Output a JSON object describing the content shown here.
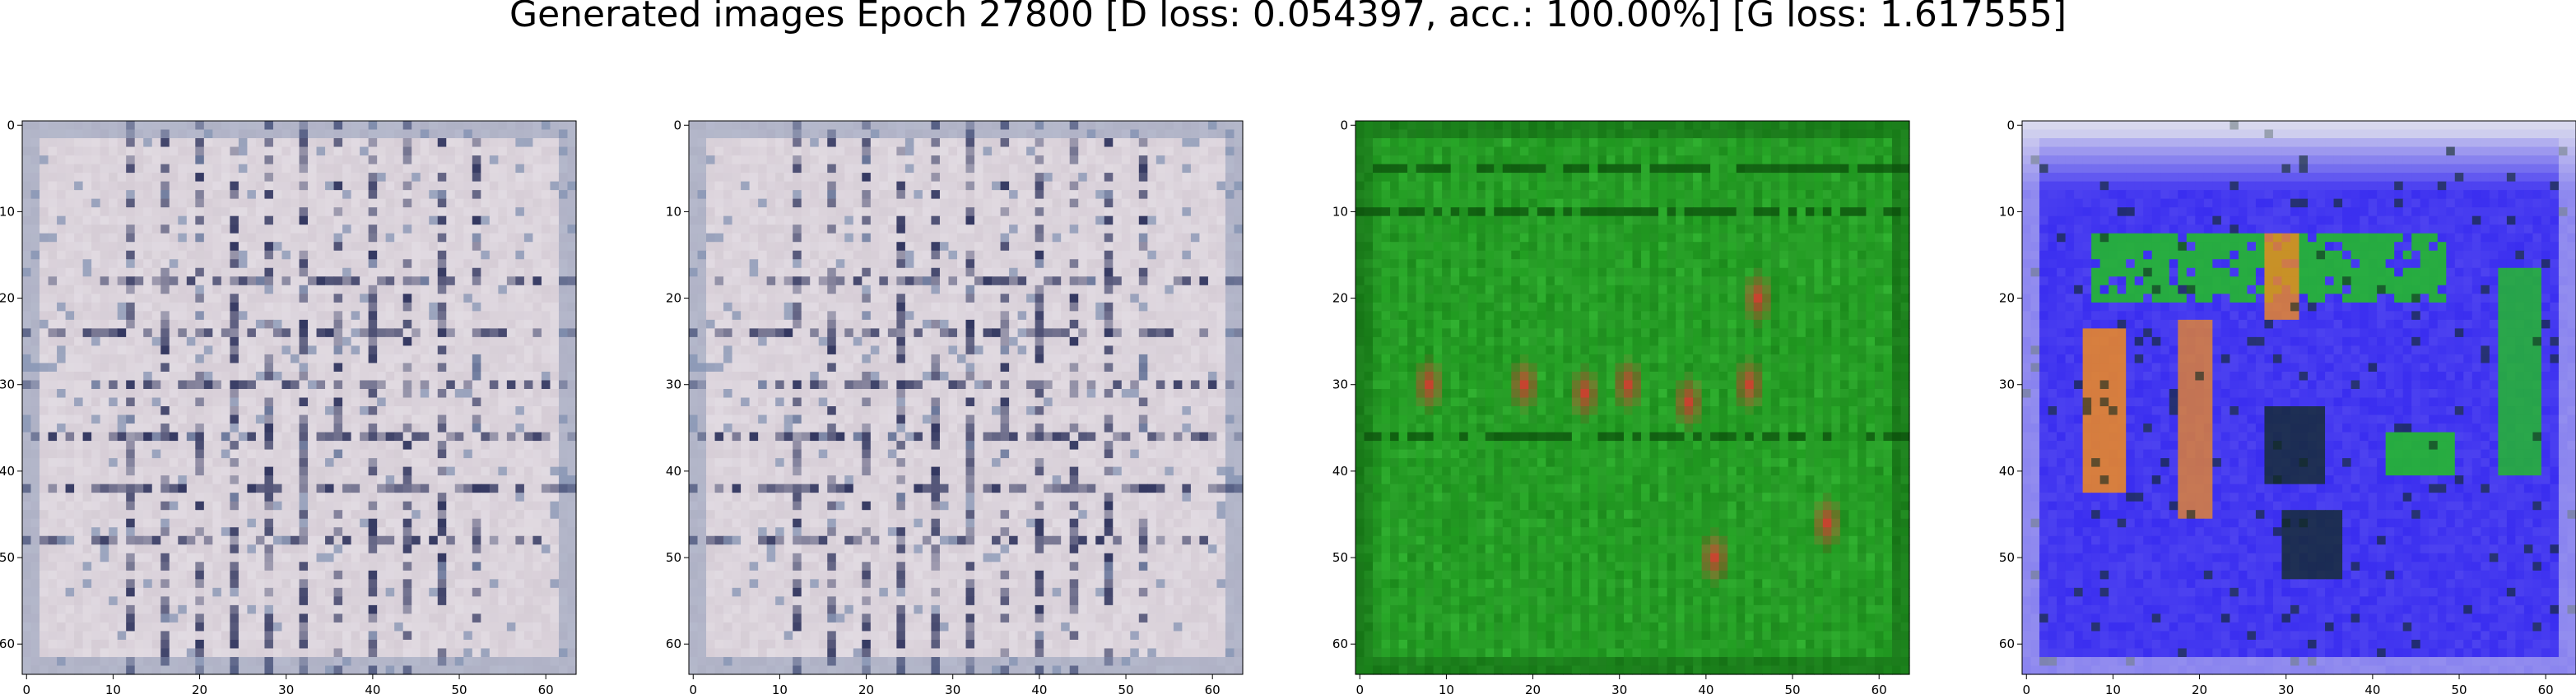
{
  "figure": {
    "title": "Generated images Epoch 27800 [D loss: 0.054397, acc.: 100.00%] [G loss: 1.617555]"
  },
  "chart_data": [
    {
      "type": "heatmap",
      "description_palette": "grey-white",
      "xlim": [
        -0.5,
        63.5
      ],
      "ylim": [
        63.5,
        -0.5
      ],
      "xticks": [
        0,
        10,
        20,
        30,
        40,
        50,
        60
      ],
      "yticks": [
        0,
        10,
        20,
        30,
        40,
        50,
        60
      ],
      "grid": false,
      "colors": {
        "base": "#d6cdd6",
        "light": "#e9e4ea",
        "dark": "#2a2f5a",
        "accent": "#7f8fb0"
      }
    },
    {
      "type": "heatmap",
      "description_palette": "grey-white",
      "xlim": [
        -0.5,
        63.5
      ],
      "ylim": [
        63.5,
        -0.5
      ],
      "xticks": [
        0,
        10,
        20,
        30,
        40,
        50,
        60
      ],
      "yticks": [
        0,
        10,
        20,
        30,
        40,
        50,
        60
      ],
      "grid": false,
      "colors": {
        "base": "#d6cdd6",
        "light": "#e9e4ea",
        "dark": "#2a2f5a",
        "accent": "#7f8fb0"
      }
    },
    {
      "type": "heatmap",
      "description_palette": "green",
      "xlim": [
        -0.5,
        63.5
      ],
      "ylim": [
        63.5,
        -0.5
      ],
      "xticks": [
        0,
        10,
        20,
        30,
        40,
        50,
        60
      ],
      "yticks": [
        0,
        10,
        20,
        30,
        40,
        50,
        60
      ],
      "grid": false,
      "colors": {
        "base": "#22a022",
        "light": "#3cc03c",
        "dark": "#0a4a0a",
        "accent": "#d83a30"
      }
    },
    {
      "type": "heatmap",
      "description_palette": "blue-green-orange",
      "xlim": [
        -0.5,
        63.5
      ],
      "ylim": [
        63.5,
        -0.5
      ],
      "xticks": [
        0,
        10,
        20,
        30,
        40,
        50,
        60
      ],
      "yticks": [
        0,
        10,
        20,
        30,
        40,
        50,
        60
      ],
      "grid": false,
      "colors": {
        "base": "#3a2ef0",
        "light": "#d8d8ee",
        "dark": "#102a20",
        "accent": "#f08a20",
        "accent2": "#22c022"
      }
    }
  ]
}
